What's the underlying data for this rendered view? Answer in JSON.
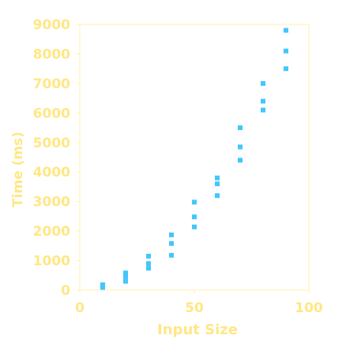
{
  "chart_data": {
    "type": "scatter",
    "title": "",
    "xlabel": "Input Size",
    "ylabel": "Time (ms)",
    "xlim": [
      0,
      100
    ],
    "ylim": [
      0,
      9000
    ],
    "x_ticks": [
      0,
      50,
      100
    ],
    "y_ticks": [
      0,
      1000,
      2000,
      3000,
      4000,
      5000,
      6000,
      7000,
      8000,
      9000
    ],
    "grid": false,
    "legend": "none",
    "colors": {
      "axis": "#fff2a8",
      "tick_label": "#ffe785",
      "axis_label": "#ffe785",
      "marker": "#42c6ff"
    },
    "points": [
      {
        "x": 10,
        "y": 90
      },
      {
        "x": 10,
        "y": 130
      },
      {
        "x": 10,
        "y": 180
      },
      {
        "x": 20,
        "y": 300
      },
      {
        "x": 20,
        "y": 460
      },
      {
        "x": 20,
        "y": 580
      },
      {
        "x": 30,
        "y": 740
      },
      {
        "x": 30,
        "y": 900
      },
      {
        "x": 30,
        "y": 1150
      },
      {
        "x": 40,
        "y": 1180
      },
      {
        "x": 40,
        "y": 1580
      },
      {
        "x": 40,
        "y": 1870
      },
      {
        "x": 50,
        "y": 2140
      },
      {
        "x": 50,
        "y": 2480
      },
      {
        "x": 50,
        "y": 2980
      },
      {
        "x": 60,
        "y": 3200
      },
      {
        "x": 60,
        "y": 3600
      },
      {
        "x": 60,
        "y": 3800
      },
      {
        "x": 70,
        "y": 4400
      },
      {
        "x": 70,
        "y": 4850
      },
      {
        "x": 70,
        "y": 5500
      },
      {
        "x": 80,
        "y": 6100
      },
      {
        "x": 80,
        "y": 6400
      },
      {
        "x": 80,
        "y": 7000
      },
      {
        "x": 90,
        "y": 7500
      },
      {
        "x": 90,
        "y": 8100
      },
      {
        "x": 90,
        "y": 8800
      }
    ]
  }
}
